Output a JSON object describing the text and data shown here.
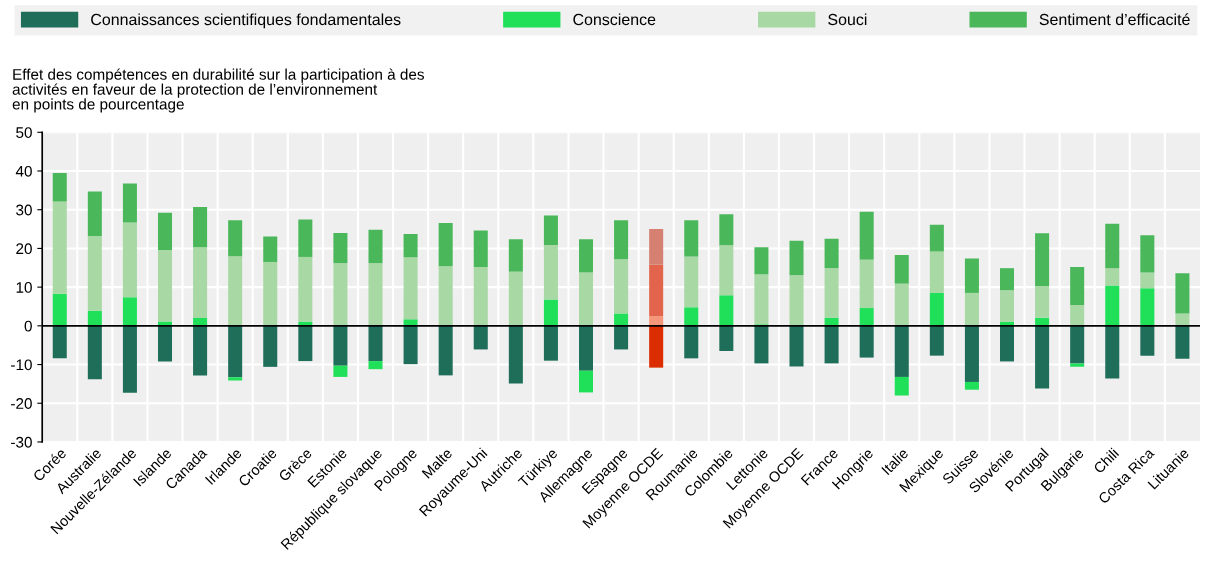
{
  "chart_data": {
    "type": "bar",
    "stacked": true,
    "ylabel": "Effet des compétences en durabilité sur la participation à des\nactivités en faveur de la protection de l’environnement\nen points de pourcentage",
    "categories": [
      "Corée",
      "Australie",
      "Nouvelle-Zélande",
      "Islande",
      "Canada",
      "Irlande",
      "Croatie",
      "Grèce",
      "Estonie",
      "République slovaque",
      "Pologne",
      "Malte",
      "Royaume-Uni",
      "Autriche",
      "Türkiye",
      "Allemagne",
      "Espagne",
      "Moyenne OCDE",
      "Roumanie",
      "Colombie",
      "Lettonie",
      "Moyenne OCDE",
      "France",
      "Hongrie",
      "Italie",
      "Mexique",
      "Suisse",
      "Slovénie",
      "Portugal",
      "Bulgarie",
      "Chili",
      "Costa Rica",
      "Lituanie"
    ],
    "series": [
      {
        "name": "Connaissances scientifiques fondamentales",
        "color": "#1f6e5a",
        "colors": [
          "#1f6e5a",
          "#1f6e5a",
          "#1f6e5a",
          "#1f6e5a",
          "#1f6e5a",
          "#1f6e5a",
          "#1f6e5a",
          "#1f6e5a",
          "#1f6e5a",
          "#1f6e5a",
          "#1f6e5a",
          "#1f6e5a",
          "#1f6e5a",
          "#1f6e5a",
          "#1f6e5a",
          "#1f6e5a",
          "#1f6e5a",
          "#dc2d00",
          "#1f6e5a",
          "#1f6e5a",
          "#1f6e5a",
          "#1f6e5a",
          "#1f6e5a",
          "#1f6e5a",
          "#1f6e5a",
          "#1f6e5a",
          "#1f6e5a",
          "#1f6e5a",
          "#1f6e5a",
          "#1f6e5a",
          "#1f6e5a",
          "#1f6e5a",
          "#1f6e5a"
        ],
        "values": [
          -8.4,
          -13.8,
          -17.3,
          -9.2,
          -12.8,
          -13.3,
          -10.6,
          -9.1,
          -10.3,
          -9.1,
          -9.9,
          -12.8,
          -6.1,
          -14.9,
          -9.0,
          -11.6,
          -6.1,
          -10.8,
          -8.4,
          -6.5,
          -9.7,
          -10.5,
          -9.7,
          -8.2,
          -13.2,
          -7.7,
          -14.5,
          -9.2,
          -16.2,
          -9.7,
          -13.6,
          -7.7,
          -8.5
        ]
      },
      {
        "name": "Conscience",
        "color": "#20e05a",
        "colors": [
          "#20e05a",
          "#20e05a",
          "#20e05a",
          "#20e05a",
          "#20e05a",
          "#20e05a",
          "#20e05a",
          "#20e05a",
          "#20e05a",
          "#20e05a",
          "#20e05a",
          "#20e05a",
          "#20e05a",
          "#20e05a",
          "#20e05a",
          "#20e05a",
          "#20e05a",
          "#f5967a",
          "#20e05a",
          "#20e05a",
          "#20e05a",
          "#20e05a",
          "#20e05a",
          "#20e05a",
          "#20e05a",
          "#20e05a",
          "#20e05a",
          "#20e05a",
          "#20e05a",
          "#20e05a",
          "#20e05a",
          "#20e05a",
          "#20e05a"
        ],
        "values": [
          8.3,
          3.9,
          7.4,
          1.1,
          2.0,
          -0.8,
          null,
          1.1,
          -2.9,
          -2.1,
          1.7,
          0,
          null,
          0,
          6.8,
          -5.6,
          3.2,
          2.5,
          4.8,
          7.9,
          0.4,
          0,
          2.1,
          4.6,
          -4.8,
          8.5,
          -2.0,
          1.0,
          2.1,
          -0.9,
          10.4,
          9.7,
          0
        ]
      },
      {
        "name": "Souci",
        "color": "#a8d8a4",
        "colors": [
          "#a8d8a4",
          "#a8d8a4",
          "#a8d8a4",
          "#a8d8a4",
          "#a8d8a4",
          "#a8d8a4",
          "#a8d8a4",
          "#a8d8a4",
          "#a8d8a4",
          "#a8d8a4",
          "#a8d8a4",
          "#a8d8a4",
          "#a8d8a4",
          "#a8d8a4",
          "#a8d8a4",
          "#a8d8a4",
          "#a8d8a4",
          "#e3644c",
          "#a8d8a4",
          "#a8d8a4",
          "#a8d8a4",
          "#a8d8a4",
          "#a8d8a4",
          "#a8d8a4",
          "#a8d8a4",
          "#a8d8a4",
          "#a8d8a4",
          "#a8d8a4",
          "#a8d8a4",
          "#a8d8a4",
          "#a8d8a4",
          "#a8d8a4",
          "#a8d8a4"
        ],
        "values": [
          23.8,
          19.3,
          19.3,
          18.5,
          18.3,
          18.0,
          16.5,
          16.7,
          16.2,
          16.2,
          16.0,
          15.4,
          15.2,
          14.0,
          14.1,
          13.8,
          14.0,
          13.3,
          13.1,
          12.9,
          12.9,
          13.1,
          12.8,
          12.5,
          10.9,
          10.7,
          8.5,
          8.2,
          8.2,
          5.4,
          4.5,
          4.1,
          3.2
        ]
      },
      {
        "name": "Sentiment d’efficacité",
        "color": "#4ab85a",
        "colors": [
          "#4ab85a",
          "#4ab85a",
          "#4ab85a",
          "#4ab85a",
          "#4ab85a",
          "#4ab85a",
          "#4ab85a",
          "#4ab85a",
          "#4ab85a",
          "#4ab85a",
          "#4ab85a",
          "#4ab85a",
          "#4ab85a",
          "#4ab85a",
          "#4ab85a",
          "#4ab85a",
          "#4ab85a",
          "#d58070",
          "#4ab85a",
          "#4ab85a",
          "#4ab85a",
          "#4ab85a",
          "#4ab85a",
          "#4ab85a",
          "#4ab85a",
          "#4ab85a",
          "#4ab85a",
          "#4ab85a",
          "#4ab85a",
          "#4ab85a",
          "#4ab85a",
          "#4ab85a",
          "#4ab85a"
        ],
        "values": [
          7.4,
          11.5,
          10.1,
          9.6,
          10.4,
          9.3,
          6.6,
          9.7,
          7.8,
          8.6,
          6.0,
          11.2,
          9.4,
          8.4,
          7.6,
          8.6,
          10.1,
          9.2,
          9.4,
          8.0,
          7.0,
          8.9,
          7.6,
          12.4,
          7.4,
          6.9,
          8.9,
          5.7,
          13.6,
          9.8,
          11.5,
          9.6,
          10.4
        ]
      }
    ],
    "ylim": [
      -30,
      50
    ],
    "yticks": [
      -30,
      -20,
      -10,
      0,
      10,
      20,
      30,
      40,
      50
    ],
    "grid": true,
    "legend": "top"
  }
}
